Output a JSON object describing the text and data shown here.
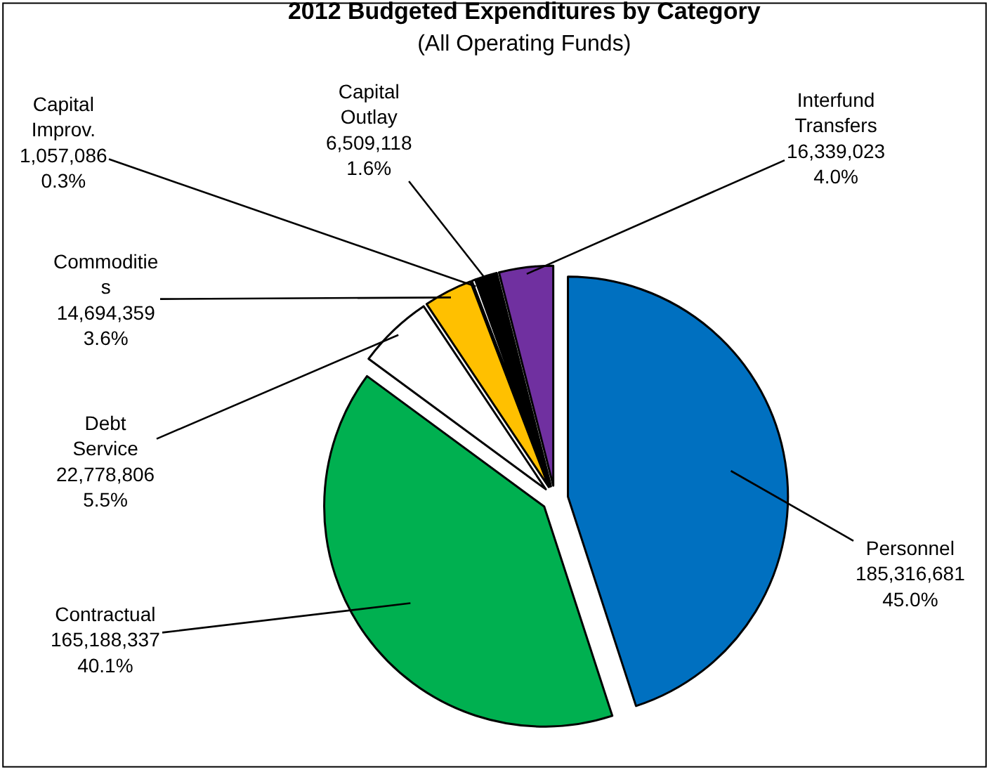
{
  "chart_data": {
    "type": "pie",
    "title": "2012 Budgeted Expenditures by Category",
    "subtitle": "(All Operating Funds)",
    "categories": [
      "Personnel",
      "Contractual",
      "Debt\nService",
      "Commoditie\ns",
      "Capital\nImprov.",
      "Capital\nOutlay",
      "Interfund\nTransfers"
    ],
    "values": [
      185316681,
      165188337,
      22778806,
      14694359,
      1057086,
      6509118,
      16339023
    ],
    "value_labels": [
      "185,316,681\n45.0%",
      "165,188,337\n40.1%",
      "22,778,806\n5.5%",
      "14,694,359\n3.6%",
      "1,057,086\n0.3%",
      "6,509,118\n1.6%",
      "16,339,023\n4.0%"
    ],
    "colors": [
      "#0070c0",
      "#00b050",
      "#ffffff",
      "#ffc000",
      "#ffffff",
      "#000000",
      "#7030a0"
    ],
    "legend": false
  }
}
